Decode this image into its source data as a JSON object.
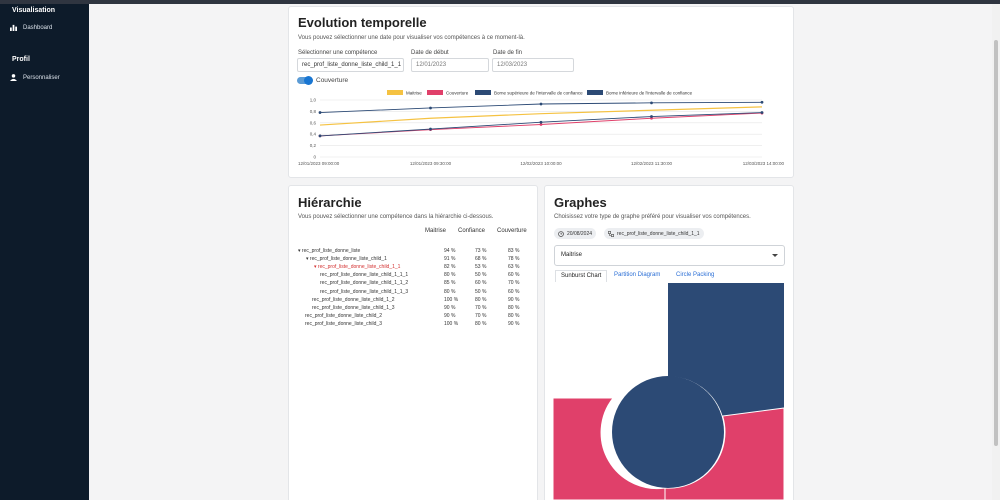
{
  "sidebar": {
    "section1": "Visualisation",
    "dashboard": "Dashboard",
    "section2": "Profil",
    "personnaliser": "Personnaliser"
  },
  "evolution": {
    "title": "Evolution temporelle",
    "subtitle": "Vous pouvez sélectionner une date pour visualiser vos compétences à ce moment-là.",
    "competence_label": "Sélectionner une compétence",
    "competence_value": "rec_prof_liste_donne_liste_child_1_1",
    "start_label": "Date de début",
    "start_value": "12/01/2023",
    "end_label": "Date de fin",
    "end_value": "12/03/2023",
    "toggle_label": "Couverture"
  },
  "chart_data": {
    "type": "line",
    "title": "",
    "xlabel": "",
    "ylabel": "",
    "ylim": [
      0,
      1.0
    ],
    "yticks": [
      "0",
      "0,2",
      "0,4",
      "0,6",
      "0,8",
      "1,0"
    ],
    "x": [
      "12/01/2023 09:00:00",
      "12/01/2023 09:30:00",
      "12/02/2023 10:00:00",
      "12/02/2023 11:30:00",
      "12/03/2023 14:00:00"
    ],
    "series": [
      {
        "name": "Maitrise",
        "color": "#f5c242",
        "markers": false,
        "values": [
          0.56,
          0.68,
          0.76,
          0.82,
          0.88
        ]
      },
      {
        "name": "Couverture",
        "color": "#e0406a",
        "markers": true,
        "values": [
          0.37,
          0.48,
          0.57,
          0.68,
          0.77
        ]
      },
      {
        "name": "Borne supérieure de l'intervalle de confiance",
        "color": "#2c4a75",
        "markers": true,
        "values": [
          0.78,
          0.86,
          0.93,
          0.95,
          0.96
        ]
      },
      {
        "name": "Borne inférieure de l'intervalle de confiance",
        "color": "#2c4a75",
        "markers": true,
        "values": [
          0.37,
          0.49,
          0.61,
          0.71,
          0.78
        ]
      }
    ]
  },
  "hierarchy": {
    "title": "Hiérarchie",
    "subtitle": "Vous pouvez sélectionner une compétence dans la hiérarchie ci-dessous.",
    "columns": [
      "Maitrise",
      "Confiance",
      "Couverture"
    ],
    "rows": [
      {
        "name": "rec_prof_liste_donne_liste",
        "m": "94 %",
        "c": "73 %",
        "v": "83 %"
      },
      {
        "name": "rec_prof_liste_donne_liste_child_1",
        "m": "91 %",
        "c": "68 %",
        "v": "78 %"
      },
      {
        "name": "rec_prof_liste_donne_liste_child_1_1",
        "m": "82 %",
        "c": "53 %",
        "v": "63 %"
      },
      {
        "name": "rec_prof_liste_donne_liste_child_1_1_1",
        "m": "80 %",
        "c": "50 %",
        "v": "60 %"
      },
      {
        "name": "rec_prof_liste_donne_liste_child_1_1_2",
        "m": "85 %",
        "c": "60 %",
        "v": "70 %"
      },
      {
        "name": "rec_prof_liste_donne_liste_child_1_1_3",
        "m": "80 %",
        "c": "50 %",
        "v": "60 %"
      },
      {
        "name": "rec_prof_liste_donne_liste_child_1_2",
        "m": "100 %",
        "c": "80 %",
        "v": "90 %"
      },
      {
        "name": "rec_prof_liste_donne_liste_child_1_3",
        "m": "90 %",
        "c": "70 %",
        "v": "80 %"
      },
      {
        "name": "rec_prof_liste_donne_liste_child_2",
        "m": "90 %",
        "c": "70 %",
        "v": "80 %"
      },
      {
        "name": "rec_prof_liste_donne_liste_child_3",
        "m": "100 %",
        "c": "80 %",
        "v": "90 %"
      }
    ]
  },
  "graphes": {
    "title": "Graphes",
    "subtitle": "Choisissez votre type de graphe préféré pour visualiser vos compétences.",
    "date_chip": "20/08/2024",
    "competence_chip": "rec_prof_liste_donne_liste_child_1_1",
    "select_value": "Maitrise",
    "tabs": [
      "Sunburst Chart",
      "Partition Diagram",
      "Circle Packing"
    ]
  },
  "colors": {
    "sidebar": "#0d1b2a",
    "navy": "#2c4a75",
    "pink": "#e0406a",
    "yellow": "#f5c242",
    "link": "#2b6fd6"
  }
}
